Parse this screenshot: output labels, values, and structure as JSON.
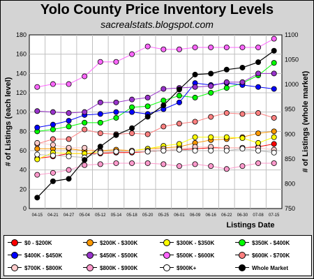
{
  "header": {
    "title": "Yolo County Price Inventory Levels",
    "subtitle": "sacrealstats.blogspot.com"
  },
  "chart_data": {
    "type": "line",
    "title": "Yolo County Price Inventory Levels",
    "subtitle": "sacrealstats.blogspot.com",
    "xlabel": "Listings Date",
    "ylabel_left": "# of Listings (each level)",
    "ylabel_right": "# of Listings (whole market)",
    "ylim_left": [
      0,
      180
    ],
    "ylim_right": [
      750,
      1100
    ],
    "yticks_left": [
      0,
      20,
      40,
      60,
      80,
      100,
      120,
      140,
      160,
      180
    ],
    "yticks_right": [
      750,
      800,
      850,
      900,
      950,
      1000,
      1050,
      1100
    ],
    "grid": true,
    "legend_position": "bottom",
    "categories": [
      "04-15",
      "04-21",
      "04-27",
      "05-04",
      "05-12",
      "05-14",
      "05-18",
      "05-20",
      "05-25",
      "06-01",
      "06-09",
      "06-16",
      "06-22",
      "06-30",
      "07-08",
      "07-15"
    ],
    "series": [
      {
        "name": "$0 - $200K",
        "color": "#ff0000",
        "axis": "left",
        "values": [
          52,
          54,
          57,
          57,
          57,
          58,
          58,
          59,
          60,
          61,
          62,
          63,
          63,
          63,
          64,
          67
        ]
      },
      {
        "name": "$200K - $300K",
        "color": "#ff9900",
        "axis": "left",
        "values": [
          62,
          62,
          62,
          60,
          60,
          61,
          60,
          62,
          63,
          64,
          68,
          71,
          72,
          74,
          78,
          80
        ]
      },
      {
        "name": "$300K - $350K",
        "color": "#ffff00",
        "axis": "left",
        "values": [
          51,
          58,
          57,
          57,
          59,
          59,
          60,
          62,
          65,
          67,
          74,
          74,
          74,
          73,
          68,
          74
        ]
      },
      {
        "name": "$350K - $400K",
        "color": "#00ff00",
        "axis": "left",
        "values": [
          80,
          82,
          85,
          89,
          89,
          94,
          105,
          106,
          112,
          117,
          115,
          120,
          125,
          130,
          138,
          151
        ]
      },
      {
        "name": "$400K - $450K",
        "color": "#0000ff",
        "axis": "left",
        "values": [
          84,
          87,
          91,
          97,
          98,
          100,
          100,
          98,
          103,
          110,
          130,
          128,
          130,
          128,
          126,
          124
        ]
      },
      {
        "name": "$450K - $500K",
        "color": "#9933cc",
        "axis": "left",
        "values": [
          101,
          100,
          99,
          100,
          110,
          110,
          113,
          115,
          124,
          125,
          126,
          127,
          131,
          131,
          140,
          140
        ]
      },
      {
        "name": "$500K - $600K",
        "color": "#ff66ff",
        "axis": "left",
        "values": [
          126,
          129,
          129,
          137,
          152,
          152,
          160,
          168,
          165,
          165,
          167,
          167,
          167,
          167,
          167,
          176
        ]
      },
      {
        "name": "$600K - $700K",
        "color": "#ff8080",
        "axis": "left",
        "values": [
          67,
          72,
          72,
          82,
          78,
          77,
          78,
          77,
          85,
          88,
          90,
          95,
          99,
          98,
          99,
          94
        ]
      },
      {
        "name": "$700K - $800K",
        "color": "#ffcccc",
        "axis": "left",
        "values": [
          68,
          66,
          63,
          63,
          59,
          59,
          60,
          60,
          62,
          62,
          64,
          64,
          63,
          63,
          63,
          61
        ]
      },
      {
        "name": "$800K - $900K",
        "color": "#ff99cc",
        "axis": "left",
        "values": [
          35,
          37,
          40,
          45,
          46,
          47,
          47,
          47,
          46,
          44,
          46,
          44,
          41,
          44,
          47,
          47
        ]
      },
      {
        "name": "$900K+",
        "color": "#ffffff",
        "axis": "left",
        "values": [
          56,
          55,
          54,
          53,
          58,
          59,
          59,
          59,
          60,
          61,
          60,
          60,
          60,
          62,
          60,
          58
        ]
      },
      {
        "name": "Whole Market",
        "color": "#000000",
        "axis": "right",
        "values": [
          772,
          805,
          810,
          848,
          875,
          898,
          912,
          935,
          958,
          990,
          1020,
          1022,
          1030,
          1034,
          1045,
          1068
        ]
      }
    ]
  }
}
